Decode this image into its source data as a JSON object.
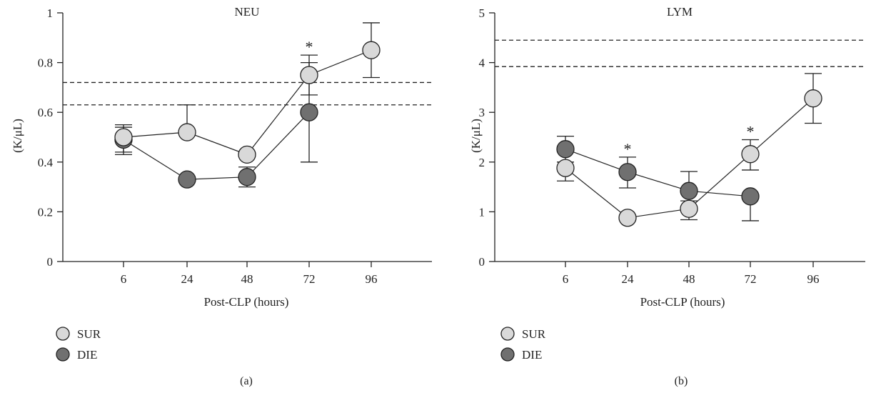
{
  "figure": {
    "panels": [
      {
        "title": "NEU",
        "ylabel": "(K/μL)",
        "xlabel": "Post-CLP (hours)",
        "caption": "(a)"
      },
      {
        "title": "LYM",
        "ylabel": "(K/μL)",
        "xlabel": "Post-CLP (hours)",
        "caption": "(b)"
      }
    ]
  },
  "colors": {
    "SUR": "#d9d9d9",
    "DIE": "#707070"
  },
  "chart_data": [
    {
      "type": "line",
      "title": "NEU",
      "xlabel": "Post-CLP (hours)",
      "ylabel": "(K/μL)",
      "categories": [
        "6",
        "24",
        "48",
        "72",
        "96"
      ],
      "ylim": [
        0,
        1
      ],
      "yticks": [
        "0",
        "0.2",
        "0.4",
        "0.6",
        "0.8",
        "1"
      ],
      "reference_lines": [
        0.63,
        0.72
      ],
      "legend": "bottom-left",
      "series": [
        {
          "name": "SUR",
          "values": [
            0.5,
            0.52,
            0.43,
            0.75,
            0.85
          ],
          "error_upper": [
            0.54,
            0.63,
            null,
            0.83,
            0.96
          ],
          "error_lower": [
            0.44,
            null,
            null,
            0.67,
            0.74
          ]
        },
        {
          "name": "DIE",
          "values": [
            0.49,
            0.33,
            0.34,
            0.6,
            null
          ],
          "error_upper": [
            0.55,
            null,
            0.38,
            0.8,
            null
          ],
          "error_lower": [
            0.43,
            null,
            0.3,
            0.4,
            null
          ]
        }
      ],
      "annotations": [
        {
          "category": "72",
          "text": "*"
        }
      ]
    },
    {
      "type": "line",
      "title": "LYM",
      "xlabel": "Post-CLP (hours)",
      "ylabel": "(K/μL)",
      "categories": [
        "6",
        "24",
        "48",
        "72",
        "96"
      ],
      "ylim": [
        0,
        5
      ],
      "yticks": [
        "0",
        "1",
        "2",
        "3",
        "4",
        "5"
      ],
      "reference_lines": [
        3.92,
        4.45
      ],
      "legend": "bottom-left",
      "series": [
        {
          "name": "SUR",
          "values": [
            1.88,
            0.88,
            1.06,
            2.16,
            3.28
          ],
          "error_upper": [
            null,
            null,
            null,
            2.45,
            3.78
          ],
          "error_lower": [
            1.62,
            null,
            0.84,
            1.84,
            2.78
          ]
        },
        {
          "name": "DIE",
          "values": [
            2.26,
            1.8,
            1.42,
            1.31,
            null
          ],
          "error_upper": [
            2.52,
            2.1,
            1.81,
            null,
            null
          ],
          "error_lower": [
            2.0,
            1.48,
            1.22,
            0.82,
            null
          ]
        }
      ],
      "annotations": [
        {
          "category": "24",
          "text": "*"
        },
        {
          "category": "72",
          "text": "*"
        }
      ]
    }
  ]
}
